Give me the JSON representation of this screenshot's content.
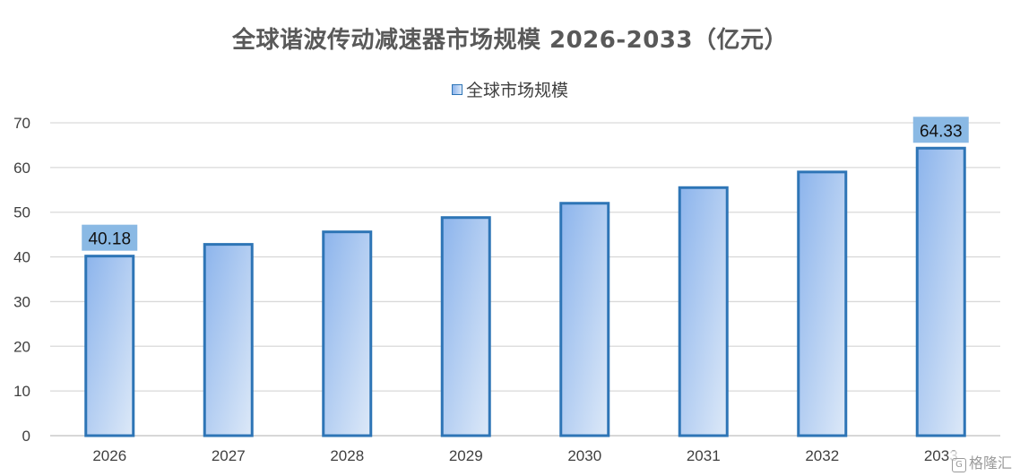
{
  "chart_data": {
    "type": "bar",
    "title": "全球谐波传动减速器市场规模 2026-2033（亿元）",
    "categories": [
      "2026",
      "2027",
      "2028",
      "2029",
      "2030",
      "2031",
      "2032",
      "2033"
    ],
    "series": [
      {
        "name": "全球市场规模",
        "values": [
          40.18,
          42.8,
          45.6,
          48.8,
          52.0,
          55.5,
          59.0,
          64.33
        ]
      }
    ],
    "data_labels": [
      {
        "index": 0,
        "text": "40.18"
      },
      {
        "index": 7,
        "text": "64.33"
      }
    ],
    "ylim": [
      0,
      70
    ],
    "yticks": [
      0,
      10,
      20,
      30,
      40,
      50,
      60,
      70
    ],
    "grid": true,
    "legend_position": "top-center",
    "colors": {
      "bar_fill_start": "#8cb4ec",
      "bar_fill_end": "#dde9f8",
      "bar_border": "#2e75b6",
      "label_box": "#8ab9e4",
      "grid": "#d9d9d9",
      "axis": "#bfbfbf",
      "tick_text": "#404040"
    }
  },
  "watermark": {
    "logo": "G",
    "text": "格隆汇"
  }
}
